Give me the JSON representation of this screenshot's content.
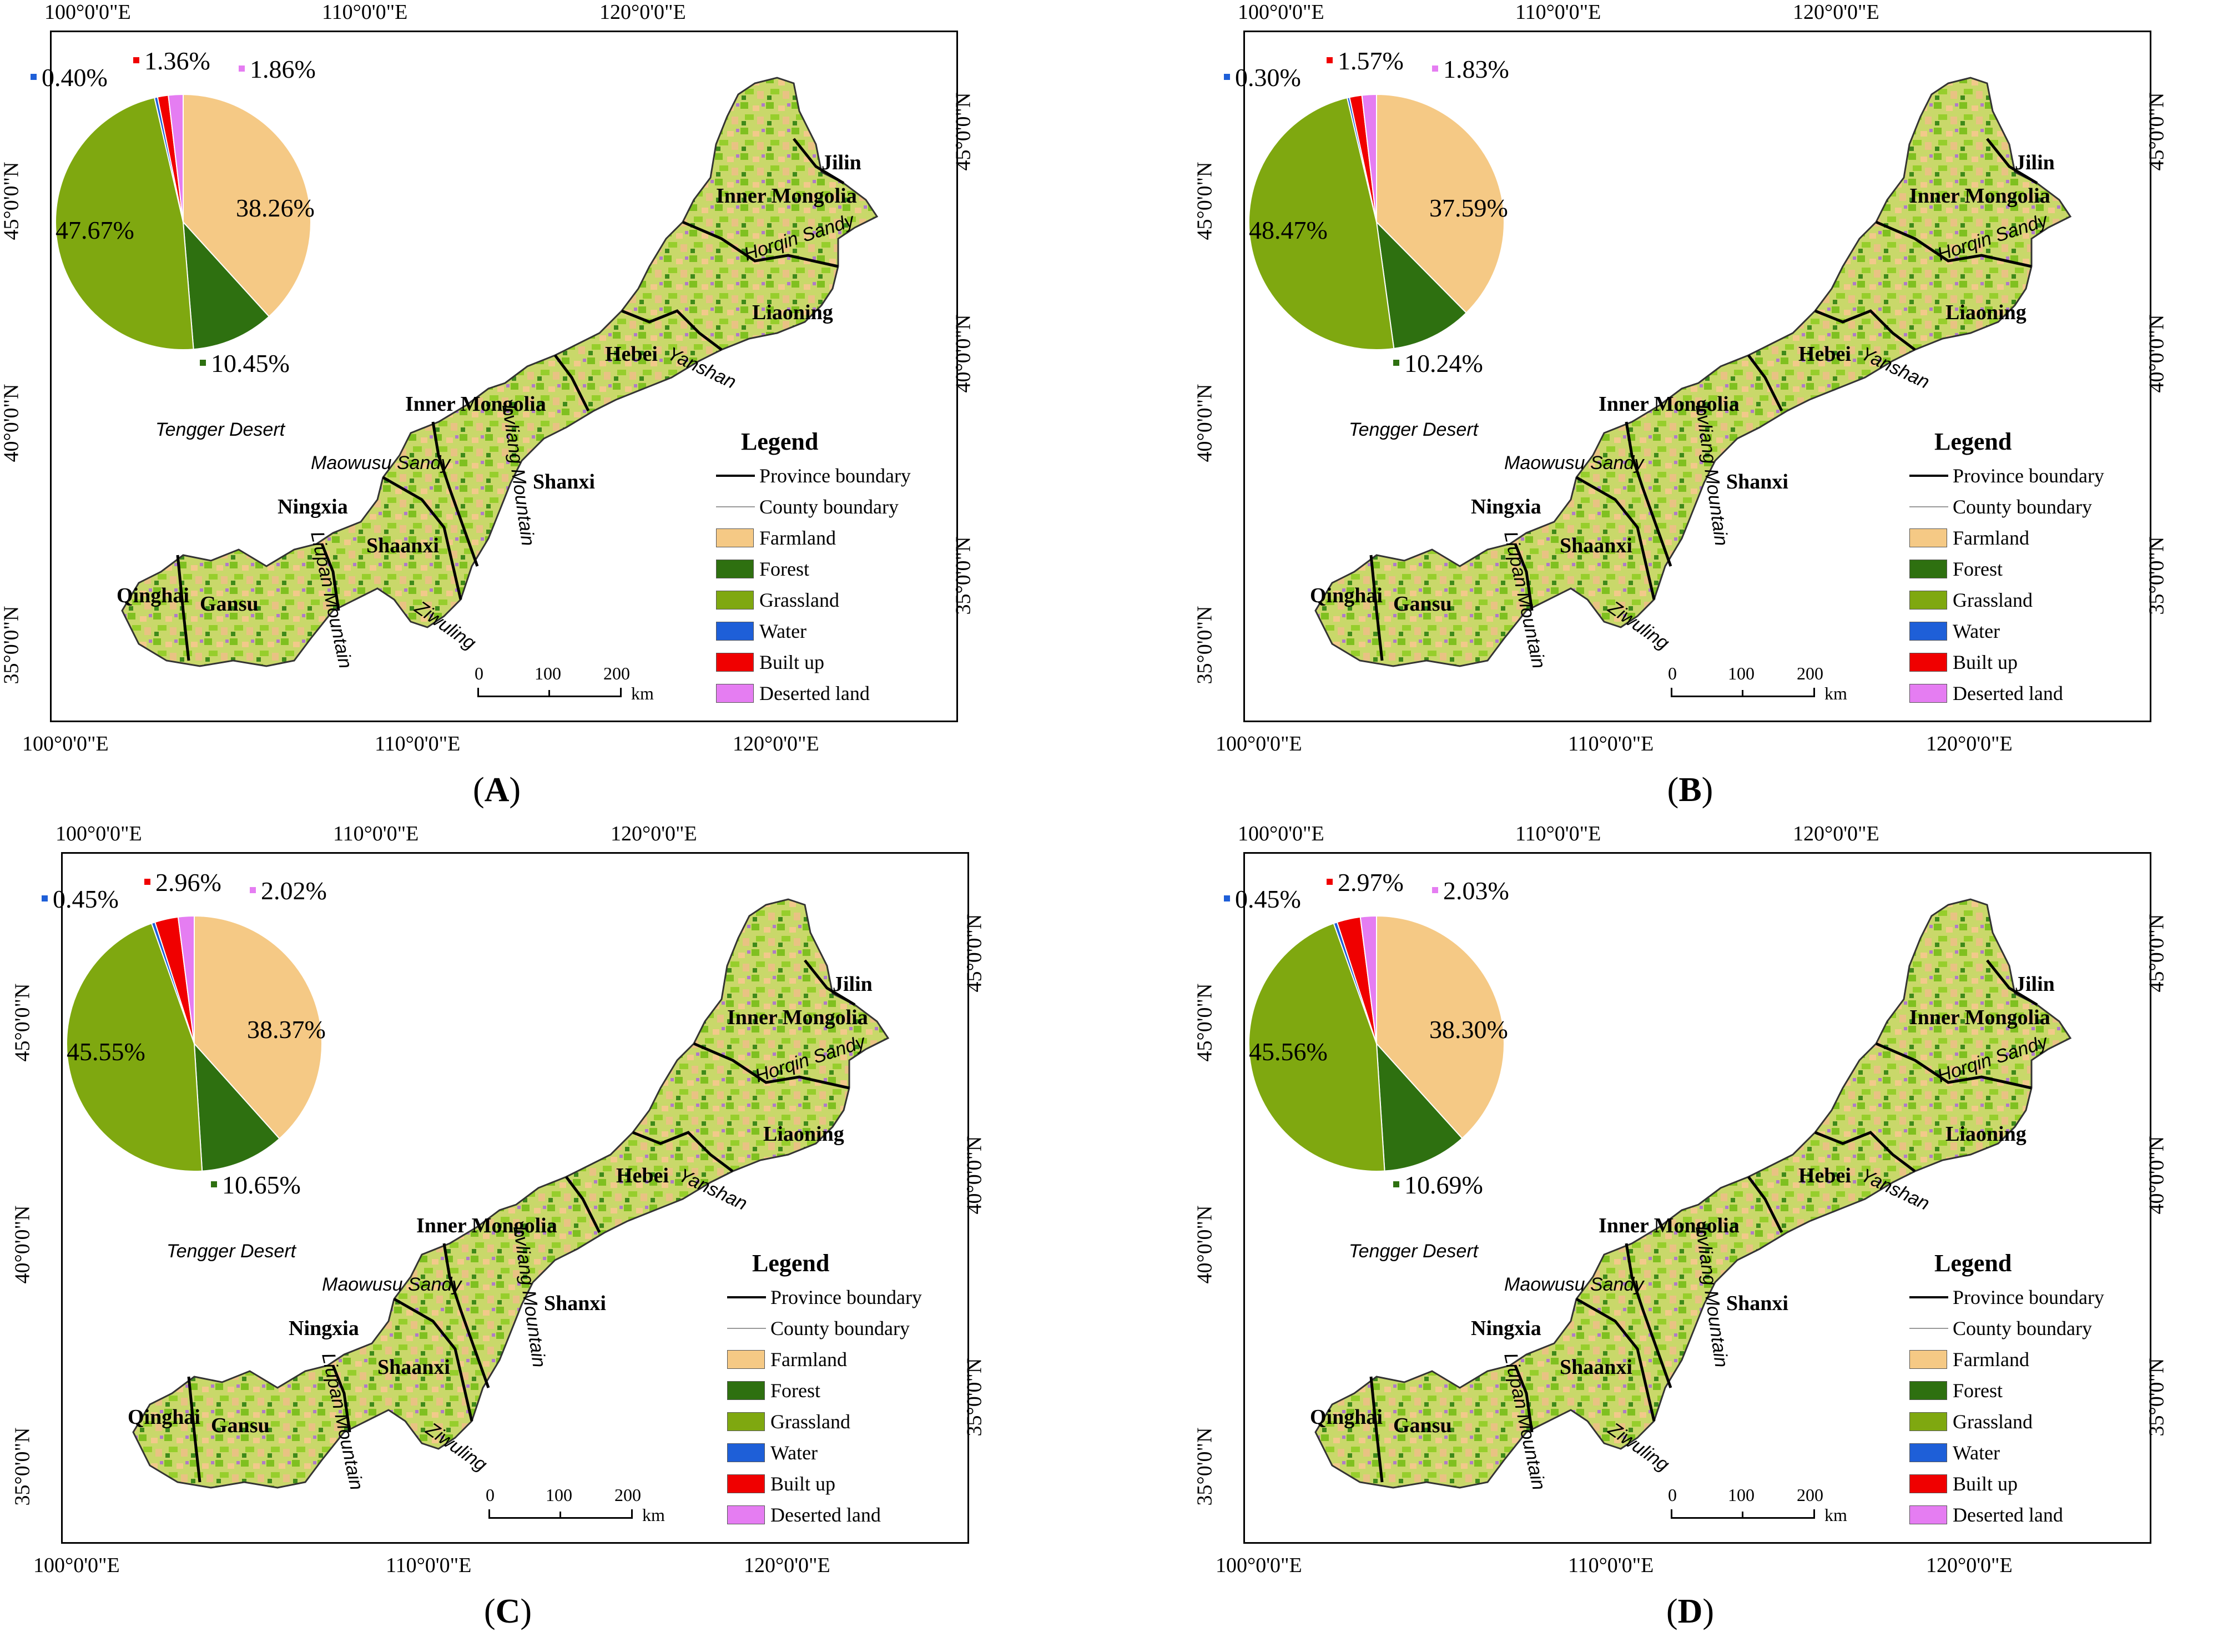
{
  "coord_labels": {
    "top_lon": [
      "100°0'0\"E",
      "110°0'0\"E",
      "120°0'0\"E"
    ],
    "bottom_lon": [
      "100°0'0\"E",
      "110°0'0\"E",
      "120°0'0\"E"
    ],
    "left_lat": [
      "45°0'0\"N",
      "40°0'0\"N",
      "35°0'0\"N"
    ],
    "right_lat": [
      "45°0'0\"N",
      "40°0'0\"N",
      "35°0'0\"N"
    ]
  },
  "place_labels": {
    "jilin": "Jilin",
    "inner_mongolia_ne": "Inner Mongolia",
    "horqin_sandy": "Horqin Sandy",
    "liaoning": "Liaoning",
    "hebei": "Hebei",
    "yanshan": "Yanshan",
    "inner_mongolia_w": "Inner Mongolia",
    "tengger_desert": "Tengger Desert",
    "maowusu_sandy": "Maowusu Sandy",
    "lvliang_mountain": "Lvliang Mountain",
    "shanxi": "Shanxi",
    "ningxia": "Ningxia",
    "liupan_mountain": "Liupan Mountain",
    "shaanxi": "Shaanxi",
    "qinghai": "Qinghai",
    "gansu": "Gansu",
    "ziwuling": "Ziwuling"
  },
  "legend": {
    "title": "Legend",
    "items": [
      {
        "label": "Province boundary",
        "kind": "line",
        "color": "#000000"
      },
      {
        "label": "County boundary",
        "kind": "line",
        "color": "#999999"
      },
      {
        "label": "Farmland",
        "kind": "box",
        "color": "#F5C985"
      },
      {
        "label": "Forest",
        "kind": "box",
        "color": "#2E7010"
      },
      {
        "label": "Grassland",
        "kind": "box",
        "color": "#7FA810"
      },
      {
        "label": "Water",
        "kind": "box",
        "color": "#1E5FD8"
      },
      {
        "label": "Built up",
        "kind": "box",
        "color": "#F00000"
      },
      {
        "label": "Deserted land",
        "kind": "box",
        "color": "#E57DF2"
      }
    ]
  },
  "scalebar": {
    "ticks": [
      "0",
      "100",
      "200"
    ],
    "unit": "km"
  },
  "panels": [
    {
      "label": "A",
      "pie": [
        {
          "class": "Farmland",
          "pct": 38.26,
          "text": "38.26%"
        },
        {
          "class": "Forest",
          "pct": 10.45,
          "text": "10.45%"
        },
        {
          "class": "Grassland",
          "pct": 47.67,
          "text": "47.67%"
        },
        {
          "class": "Water",
          "pct": 0.4,
          "text": "0.40%"
        },
        {
          "class": "Built up",
          "pct": 1.36,
          "text": "1.36%"
        },
        {
          "class": "Deserted land",
          "pct": 1.86,
          "text": "1.86%"
        }
      ]
    },
    {
      "label": "B",
      "pie": [
        {
          "class": "Farmland",
          "pct": 37.59,
          "text": "37.59%"
        },
        {
          "class": "Forest",
          "pct": 10.24,
          "text": "10.24%"
        },
        {
          "class": "Grassland",
          "pct": 48.47,
          "text": "48.47%"
        },
        {
          "class": "Water",
          "pct": 0.3,
          "text": "0.30%"
        },
        {
          "class": "Built up",
          "pct": 1.57,
          "text": "1.57%"
        },
        {
          "class": "Deserted land",
          "pct": 1.83,
          "text": "1.83%"
        }
      ]
    },
    {
      "label": "C",
      "pie": [
        {
          "class": "Farmland",
          "pct": 38.37,
          "text": "38.37%"
        },
        {
          "class": "Forest",
          "pct": 10.65,
          "text": "10.65%"
        },
        {
          "class": "Grassland",
          "pct": 45.55,
          "text": "45.55%"
        },
        {
          "class": "Water",
          "pct": 0.45,
          "text": "0.45%"
        },
        {
          "class": "Built up",
          "pct": 2.96,
          "text": "2.96%"
        },
        {
          "class": "Deserted land",
          "pct": 2.02,
          "text": "2.02%"
        }
      ]
    },
    {
      "label": "D",
      "pie": [
        {
          "class": "Farmland",
          "pct": 38.3,
          "text": "38.30%"
        },
        {
          "class": "Forest",
          "pct": 10.69,
          "text": "10.69%"
        },
        {
          "class": "Grassland",
          "pct": 45.56,
          "text": "45.56%"
        },
        {
          "class": "Water",
          "pct": 0.45,
          "text": "0.45%"
        },
        {
          "class": "Built up",
          "pct": 2.97,
          "text": "2.97%"
        },
        {
          "class": "Deserted land",
          "pct": 2.03,
          "text": "2.03%"
        }
      ]
    }
  ]
}
